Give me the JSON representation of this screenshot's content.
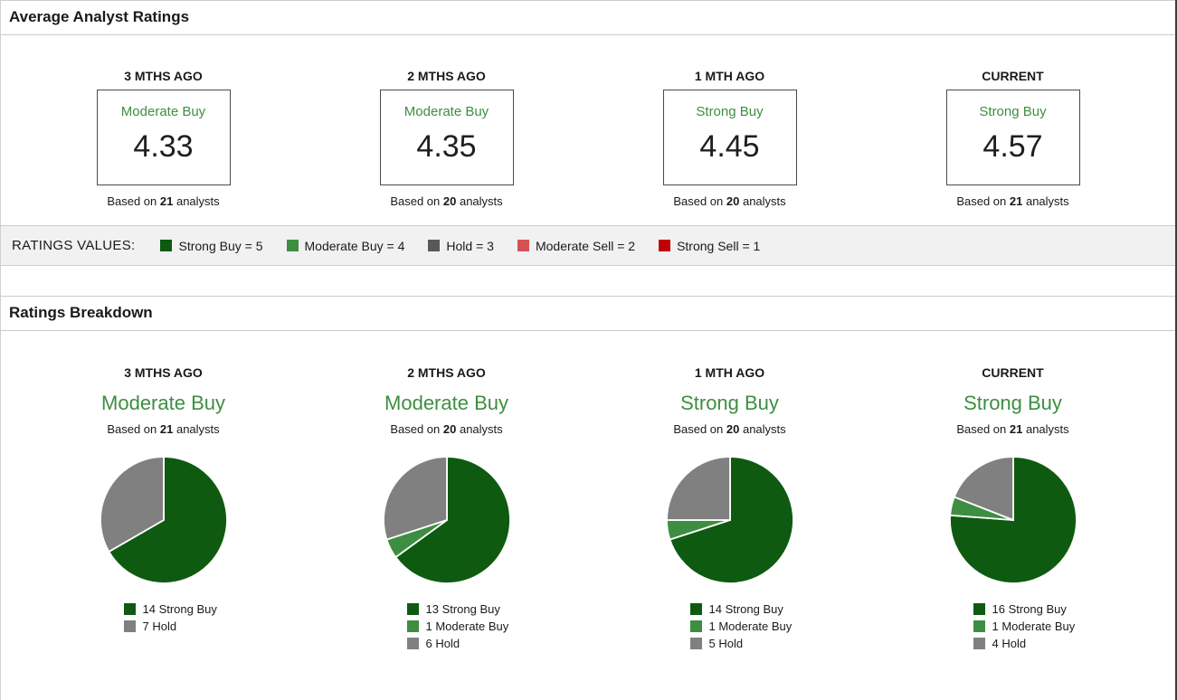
{
  "colors": {
    "strong_buy": "#0e5a11",
    "moderate_buy": "#3e8e41",
    "hold_pie": "#808080",
    "hold_legend": "#595959",
    "moderate_sell": "#d65252",
    "strong_sell": "#c00000",
    "rating_text_green": "#3e8e41"
  },
  "average_section": {
    "title": "Average Analyst Ratings",
    "cards": [
      {
        "period": "3 MTHS AGO",
        "rating": "Moderate Buy",
        "value": "4.33",
        "based_prefix": "Based on",
        "analysts": "21",
        "based_suffix": "analysts"
      },
      {
        "period": "2 MTHS AGO",
        "rating": "Moderate Buy",
        "value": "4.35",
        "based_prefix": "Based on",
        "analysts": "20",
        "based_suffix": "analysts"
      },
      {
        "period": "1 MTH AGO",
        "rating": "Strong Buy",
        "value": "4.45",
        "based_prefix": "Based on",
        "analysts": "20",
        "based_suffix": "analysts"
      },
      {
        "period": "CURRENT",
        "rating": "Strong Buy",
        "value": "4.57",
        "based_prefix": "Based on",
        "analysts": "21",
        "based_suffix": "analysts"
      }
    ]
  },
  "values_legend": {
    "label": "RATINGS VALUES:",
    "items": [
      {
        "label": "Strong Buy = 5",
        "color": "#0e5a11"
      },
      {
        "label": "Moderate Buy = 4",
        "color": "#3e8e41"
      },
      {
        "label": "Hold = 3",
        "color": "#595959"
      },
      {
        "label": "Moderate Sell = 2",
        "color": "#d65252"
      },
      {
        "label": "Strong Sell = 1",
        "color": "#c00000"
      }
    ]
  },
  "breakdown_section": {
    "title": "Ratings Breakdown",
    "cards": [
      {
        "period": "3 MTHS AGO",
        "rating": "Moderate Buy",
        "based_prefix": "Based on",
        "analysts": "21",
        "based_suffix": "analysts"
      },
      {
        "period": "2 MTHS AGO",
        "rating": "Moderate Buy",
        "based_prefix": "Based on",
        "analysts": "20",
        "based_suffix": "analysts"
      },
      {
        "period": "1 MTH AGO",
        "rating": "Strong Buy",
        "based_prefix": "Based on",
        "analysts": "20",
        "based_suffix": "analysts"
      },
      {
        "period": "CURRENT",
        "rating": "Strong Buy",
        "based_prefix": "Based on",
        "analysts": "21",
        "based_suffix": "analysts"
      }
    ]
  },
  "chart_data": [
    {
      "type": "pie",
      "title": "3 MTHS AGO",
      "rating": "Moderate Buy",
      "average": 4.33,
      "analysts": 21,
      "categories": [
        "Strong Buy",
        "Hold"
      ],
      "values": [
        14,
        7
      ],
      "colors": [
        "#0e5a11",
        "#808080"
      ],
      "legend_position": "bottom",
      "start_angle": "12-oclock-clockwise"
    },
    {
      "type": "pie",
      "title": "2 MTHS AGO",
      "rating": "Moderate Buy",
      "average": 4.35,
      "analysts": 20,
      "categories": [
        "Strong Buy",
        "Moderate Buy",
        "Hold"
      ],
      "values": [
        13,
        1,
        6
      ],
      "colors": [
        "#0e5a11",
        "#3e8e41",
        "#808080"
      ],
      "legend_position": "bottom",
      "start_angle": "12-oclock-clockwise"
    },
    {
      "type": "pie",
      "title": "1 MTH AGO",
      "rating": "Strong Buy",
      "average": 4.45,
      "analysts": 20,
      "categories": [
        "Strong Buy",
        "Moderate Buy",
        "Hold"
      ],
      "values": [
        14,
        1,
        5
      ],
      "colors": [
        "#0e5a11",
        "#3e8e41",
        "#808080"
      ],
      "legend_position": "bottom",
      "start_angle": "12-oclock-clockwise"
    },
    {
      "type": "pie",
      "title": "CURRENT",
      "rating": "Strong Buy",
      "average": 4.57,
      "analysts": 21,
      "categories": [
        "Strong Buy",
        "Moderate Buy",
        "Hold"
      ],
      "values": [
        16,
        1,
        4
      ],
      "colors": [
        "#0e5a11",
        "#3e8e41",
        "#808080"
      ],
      "legend_position": "bottom",
      "start_angle": "12-oclock-clockwise"
    }
  ]
}
